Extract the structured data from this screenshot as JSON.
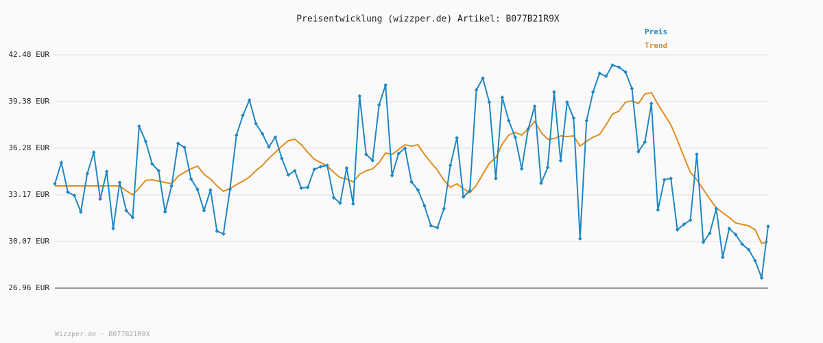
{
  "chart_data": {
    "type": "line",
    "title": "Preisentwicklung (wizzper.de) Artikel: B077B21R9X",
    "footer": "Wizzper.de - B077B21R9X",
    "ylim": [
      26.96,
      42.48
    ],
    "yticks": [
      {
        "value": 26.96,
        "label": "26.96 EUR"
      },
      {
        "value": 30.07,
        "label": "30.07 EUR"
      },
      {
        "value": 33.17,
        "label": "33.17 EUR"
      },
      {
        "value": 36.28,
        "label": "36.28 EUR"
      },
      {
        "value": 39.38,
        "label": "39.38 EUR"
      },
      {
        "value": 42.48,
        "label": "42.48 EUR"
      }
    ],
    "grid": true,
    "series": [
      {
        "name": "Preis",
        "color": "#1f86c3",
        "values": [
          33.9,
          35.31,
          33.35,
          33.12,
          32.03,
          34.58,
          36.0,
          32.89,
          34.72,
          30.93,
          33.99,
          32.12,
          31.66,
          37.73,
          36.73,
          35.22,
          34.77,
          32.03,
          33.76,
          36.59,
          36.32,
          34.22,
          33.53,
          32.12,
          33.49,
          30.75,
          30.57,
          33.53,
          37.14,
          38.46,
          39.47,
          37.91,
          37.23,
          36.36,
          37.0,
          35.59,
          34.49,
          34.77,
          33.62,
          33.67,
          34.86,
          35.04,
          35.13,
          32.98,
          32.62,
          34.95,
          32.57,
          39.74,
          35.86,
          35.45,
          39.15,
          40.47,
          34.45,
          35.91,
          36.27,
          34.03,
          33.49,
          32.44,
          31.11,
          30.98,
          32.25,
          35.13,
          36.96,
          33.03,
          33.44,
          40.15,
          40.93,
          39.33,
          34.26,
          39.65,
          38.1,
          37.0,
          34.9,
          37.55,
          39.06,
          33.94,
          34.99,
          40.01,
          35.45,
          39.33,
          38.28,
          30.25,
          38.1,
          40.01,
          41.25,
          41.06,
          41.8,
          41.66,
          41.34,
          40.24,
          36.04,
          36.68,
          39.24,
          32.16,
          34.17,
          34.26,
          30.84,
          31.2,
          31.48,
          35.86,
          30.02,
          30.61,
          32.25,
          29.01,
          30.93,
          30.52,
          29.88,
          29.52,
          28.78,
          27.64,
          31.07
        ]
      },
      {
        "name": "Trend",
        "color": "#e08c1e",
        "values": [
          33.76,
          33.76,
          33.76,
          33.76,
          33.76,
          33.76,
          33.76,
          33.76,
          33.76,
          33.76,
          33.76,
          33.44,
          33.17,
          33.62,
          34.13,
          34.17,
          34.08,
          33.99,
          33.9,
          34.4,
          34.67,
          34.9,
          35.08,
          34.54,
          34.22,
          33.76,
          33.4,
          33.58,
          33.85,
          34.08,
          34.35,
          34.77,
          35.13,
          35.59,
          36.0,
          36.41,
          36.77,
          36.87,
          36.5,
          36.0,
          35.54,
          35.31,
          35.08,
          34.67,
          34.31,
          34.22,
          34.03,
          34.54,
          34.77,
          34.9,
          35.31,
          35.95,
          35.86,
          36.18,
          36.5,
          36.41,
          36.5,
          35.86,
          35.31,
          34.81,
          34.13,
          33.67,
          33.9,
          33.58,
          33.3,
          33.81,
          34.54,
          35.27,
          35.63,
          36.55,
          37.14,
          37.32,
          37.14,
          37.55,
          38.05,
          37.32,
          36.87,
          36.91,
          37.09,
          37.05,
          37.09,
          36.41,
          36.73,
          37.0,
          37.18,
          37.82,
          38.55,
          38.74,
          39.33,
          39.42,
          39.24,
          39.88,
          39.97,
          39.19,
          38.51,
          37.82,
          36.82,
          35.72,
          34.67,
          34.17,
          33.53,
          32.89,
          32.3,
          31.98,
          31.66,
          31.3,
          31.2,
          31.11,
          30.84,
          29.93,
          30.06
        ]
      }
    ]
  }
}
